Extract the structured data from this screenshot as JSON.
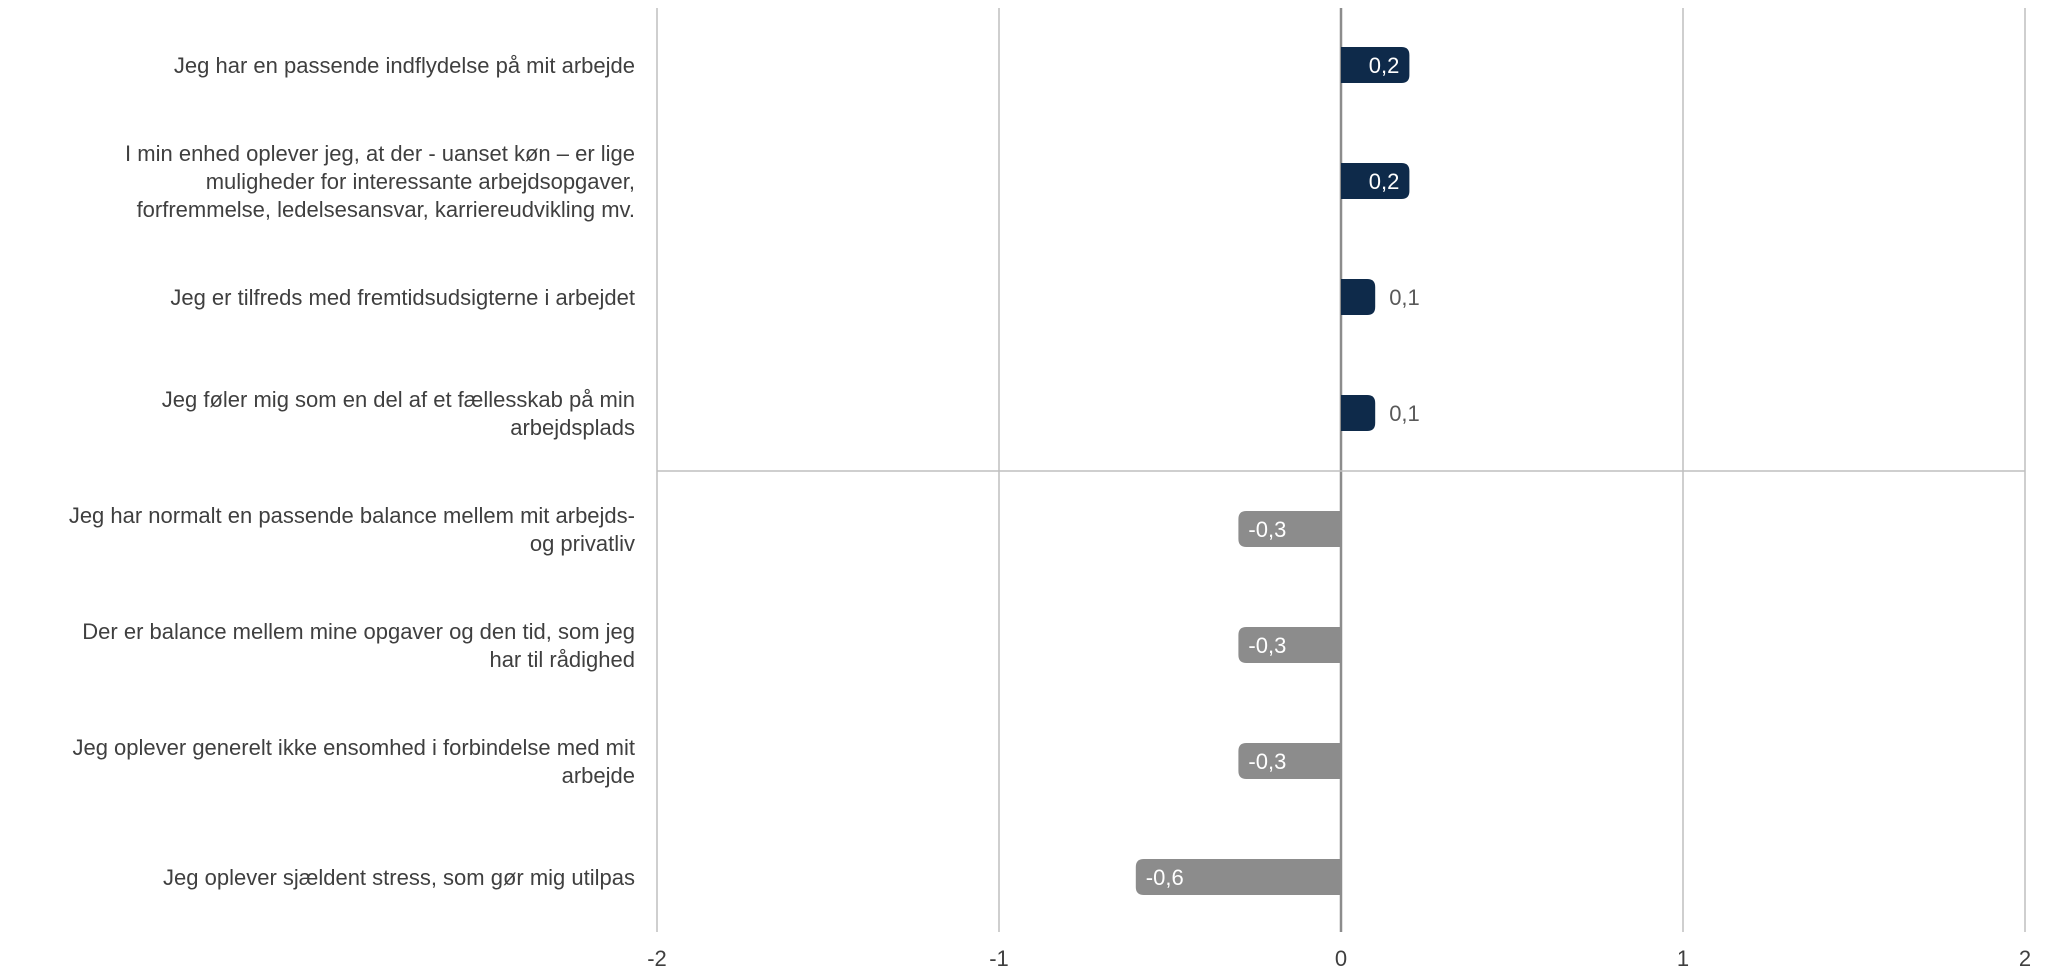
{
  "chart_data": {
    "type": "bar",
    "orientation": "horizontal",
    "categories": [
      "Jeg har en passende indflydelse på mit arbejde",
      "I min enhed oplever jeg, at der - uanset køn – er lige muligheder for interessante arbejdsopgaver, forfremmelse, ledelsesansvar, karriereudvikling mv.",
      "Jeg er tilfreds med fremtidsudsigterne i arbejdet",
      "Jeg føler mig som en del af et fællesskab på min arbejdsplads",
      "Jeg har normalt en passende balance mellem mit arbejds- og privatliv",
      "Der er balance mellem mine opgaver og den tid, som jeg har til rådighed",
      "Jeg oplever generelt ikke ensomhed i forbindelse med mit arbejde",
      "Jeg oplever sjældent stress, som gør mig utilpas"
    ],
    "category_lines": [
      [
        "Jeg har en passende indflydelse på mit arbejde"
      ],
      [
        "I min enhed oplever jeg, at der - uanset køn – er lige",
        "muligheder for interessante arbejdsopgaver,",
        "forfremmelse, ledelsesansvar, karriereudvikling mv."
      ],
      [
        "Jeg er tilfreds med fremtidsudsigterne i arbejdet"
      ],
      [
        "Jeg føler mig som en del af et fællesskab på min",
        "arbejdsplads"
      ],
      [
        "Jeg har normalt en passende balance mellem mit arbejds-",
        "og privatliv"
      ],
      [
        "Der er balance mellem mine opgaver og den tid, som jeg",
        "har til rådighed"
      ],
      [
        "Jeg oplever generelt ikke ensomhed i forbindelse med mit",
        "arbejde"
      ],
      [
        "Jeg oplever sjældent stress, som gør mig utilpas"
      ]
    ],
    "values": [
      0.2,
      0.2,
      0.1,
      0.1,
      -0.3,
      -0.3,
      -0.3,
      -0.6
    ],
    "value_labels": [
      "0,2",
      "0,2",
      "0,1",
      "0,1",
      "-0,3",
      "-0,3",
      "-0,3",
      "-0,6"
    ],
    "xlim": [
      -2,
      2
    ],
    "x_ticks": [
      -2,
      -1,
      0,
      1,
      2
    ],
    "x_tick_labels": [
      "-2",
      "-1",
      "0",
      "1",
      "2"
    ],
    "grid": true,
    "separator_after_category": 4,
    "colors": {
      "positive": "#0e2a4a",
      "negative": "#8c8c8c",
      "grid": "#bfbfbf",
      "zero_axis": "#8c8c8c",
      "label_inside": "#ffffff",
      "label_outside": "#595959"
    }
  }
}
